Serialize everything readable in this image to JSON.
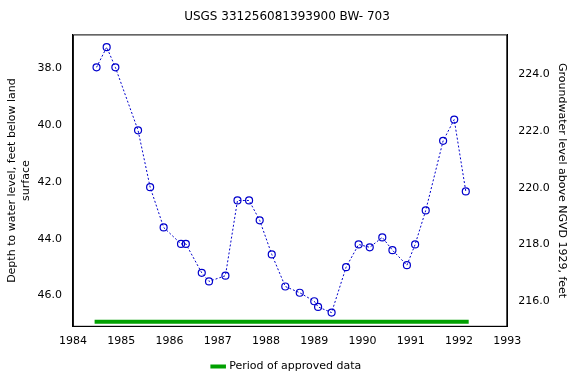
{
  "chart_data": {
    "type": "line",
    "title": "USGS 331256081393900 BW- 703",
    "x": [
      1984.49,
      1984.7,
      1984.88,
      1985.35,
      1985.6,
      1985.88,
      1986.24,
      1986.34,
      1986.67,
      1986.82,
      1987.16,
      1987.41,
      1987.65,
      1987.87,
      1988.12,
      1988.4,
      1988.7,
      1989.0,
      1989.08,
      1989.36,
      1989.66,
      1989.92,
      1990.15,
      1990.41,
      1990.62,
      1990.92,
      1991.09,
      1991.31,
      1991.67,
      1991.9,
      1992.14
    ],
    "values": [
      37.96,
      37.25,
      37.96,
      40.18,
      42.18,
      43.6,
      44.18,
      44.18,
      45.2,
      45.5,
      45.3,
      42.65,
      42.65,
      43.35,
      44.55,
      45.68,
      45.9,
      46.2,
      46.4,
      46.6,
      45.0,
      44.2,
      44.3,
      43.95,
      44.4,
      44.93,
      44.2,
      43.0,
      40.55,
      39.8,
      42.33
    ],
    "color": "#0000cc",
    "marker": "circle",
    "line_style": "dotted",
    "ylabel": [
      "Depth to water level, feet below land",
      "surface"
    ],
    "y2label": "Groundwater level above NGVD 1929, feet",
    "xlim": [
      1984,
      1993
    ],
    "xticks": [
      1984,
      1985,
      1986,
      1987,
      1988,
      1989,
      1990,
      1991,
      1992,
      1993
    ],
    "ylim": [
      47.1,
      36.8
    ],
    "yticks": [
      {
        "value": 38,
        "label": "38.0"
      },
      {
        "value": 40,
        "label": "40.0"
      },
      {
        "value": 42,
        "label": "42.0"
      },
      {
        "value": 44,
        "label": "44.0"
      },
      {
        "value": 46,
        "label": "46.0"
      }
    ],
    "y2lim": [
      215.1,
      225.4
    ],
    "y2ticks": [
      {
        "value": 216,
        "label": "216.0"
      },
      {
        "value": 218,
        "label": "218.0"
      },
      {
        "value": 220,
        "label": "220.0"
      },
      {
        "value": 222,
        "label": "222.0"
      },
      {
        "value": 224,
        "label": "224.0"
      }
    ],
    "approved_periods": [
      {
        "name": "Period of approved data",
        "color": "#00a000",
        "start": 1984.45,
        "end": 1992.2
      }
    ],
    "legend": "bottom",
    "grid": false
  }
}
